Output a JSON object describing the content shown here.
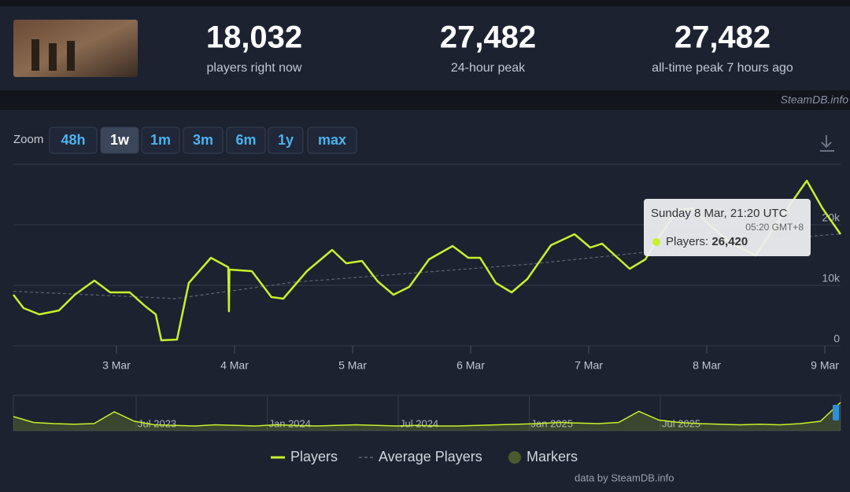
{
  "header": {
    "stats": [
      {
        "value": "18,032",
        "label": "players right now"
      },
      {
        "value": "27,482",
        "label": "24-hour peak"
      },
      {
        "value": "27,482",
        "label": "all-time peak 7 hours ago"
      }
    ],
    "source": "SteamDB.info"
  },
  "zoom": {
    "label": "Zoom",
    "options": [
      "48h",
      "1w",
      "1m",
      "3m",
      "6m",
      "1y",
      "max"
    ],
    "active": "1w"
  },
  "tooltip": {
    "date": "Sunday 8 Mar, 21:20 UTC",
    "local": "05:20 GMT+8",
    "series": "Players:",
    "value": "26,420"
  },
  "chart_data": {
    "type": "line",
    "xlim": [
      2.127,
      9.133
    ],
    "ylim": [
      0,
      30000
    ],
    "xticks": [
      {
        "value": 3,
        "label": "3 Mar"
      },
      {
        "value": 4,
        "label": "4 Mar"
      },
      {
        "value": 5,
        "label": "5 Mar"
      },
      {
        "value": 6,
        "label": "6 Mar"
      },
      {
        "value": 7,
        "label": "7 Mar"
      },
      {
        "value": 8,
        "label": "8 Mar"
      },
      {
        "value": 9,
        "label": "9 Mar"
      }
    ],
    "yticks": [
      0,
      {
        "value": 10000,
        "label": "10k"
      },
      {
        "value": 20000,
        "label": "20k"
      }
    ],
    "grid": true,
    "series": [
      {
        "name": "Players",
        "color": "#c8f02c",
        "x": [
          2.127,
          2.213,
          2.347,
          2.513,
          2.647,
          2.813,
          2.947,
          3.113,
          3.247,
          3.333,
          3.38,
          3.513,
          3.613,
          3.8,
          3.947,
          3.953,
          3.957,
          4.147,
          4.313,
          4.413,
          4.613,
          4.827,
          4.947,
          5.08,
          5.213,
          5.347,
          5.48,
          5.647,
          5.847,
          5.98,
          6.08,
          6.213,
          6.347,
          6.48,
          6.68,
          6.88,
          7.013,
          7.113,
          7.347,
          7.48,
          7.567,
          7.747,
          7.88,
          8.013,
          8.213,
          8.413,
          8.613,
          8.847,
          8.98,
          9.133
        ],
        "values": [
          8440,
          6230,
          5190,
          5840,
          8440,
          10780,
          8830,
          8830,
          6490,
          5190,
          910,
          1040,
          10390,
          14550,
          12990,
          5700,
          12600,
          12340,
          8050,
          7790,
          12340,
          15840,
          13640,
          14030,
          10650,
          8440,
          9740,
          14290,
          16490,
          14550,
          14550,
          10390,
          8830,
          11040,
          16620,
          18440,
          16230,
          16880,
          12730,
          14290,
          17140,
          22340,
          22730,
          20130,
          16880,
          14940,
          20780,
          27270,
          22730,
          18440
        ]
      },
      {
        "name": "Average Players",
        "color": "#5c6472",
        "dashed": true,
        "x": [
          2.127,
          3.5,
          4.5,
          5.5,
          6.5,
          7.5,
          8.5,
          9.133
        ],
        "values": [
          9000,
          7800,
          10500,
          12000,
          13500,
          15500,
          17500,
          18500
        ]
      }
    ],
    "markers_legend": {
      "name": "Markers",
      "color": "#4b5a2c"
    },
    "navigator": {
      "ylim": [
        0,
        30000
      ],
      "color": "#c8f02c",
      "values": [
        12000,
        7000,
        6000,
        5500,
        6000,
        16000,
        8000,
        5000,
        4500,
        4000,
        5000,
        4500,
        4000,
        5000,
        4500,
        4000,
        4500,
        5000,
        4500,
        4000,
        4500,
        4000,
        4000,
        4500,
        5000,
        5500,
        6000,
        7000,
        6500,
        6000,
        7000,
        16500,
        9000,
        7000,
        6000,
        5500,
        5000,
        5500,
        5000,
        6000,
        8000,
        24000
      ],
      "labels": [
        "Jul 2023",
        "Jan 2024",
        "Jul 2024",
        "Jan 2025",
        "Jul 2025"
      ]
    },
    "credit": "data by SteamDB.info"
  }
}
